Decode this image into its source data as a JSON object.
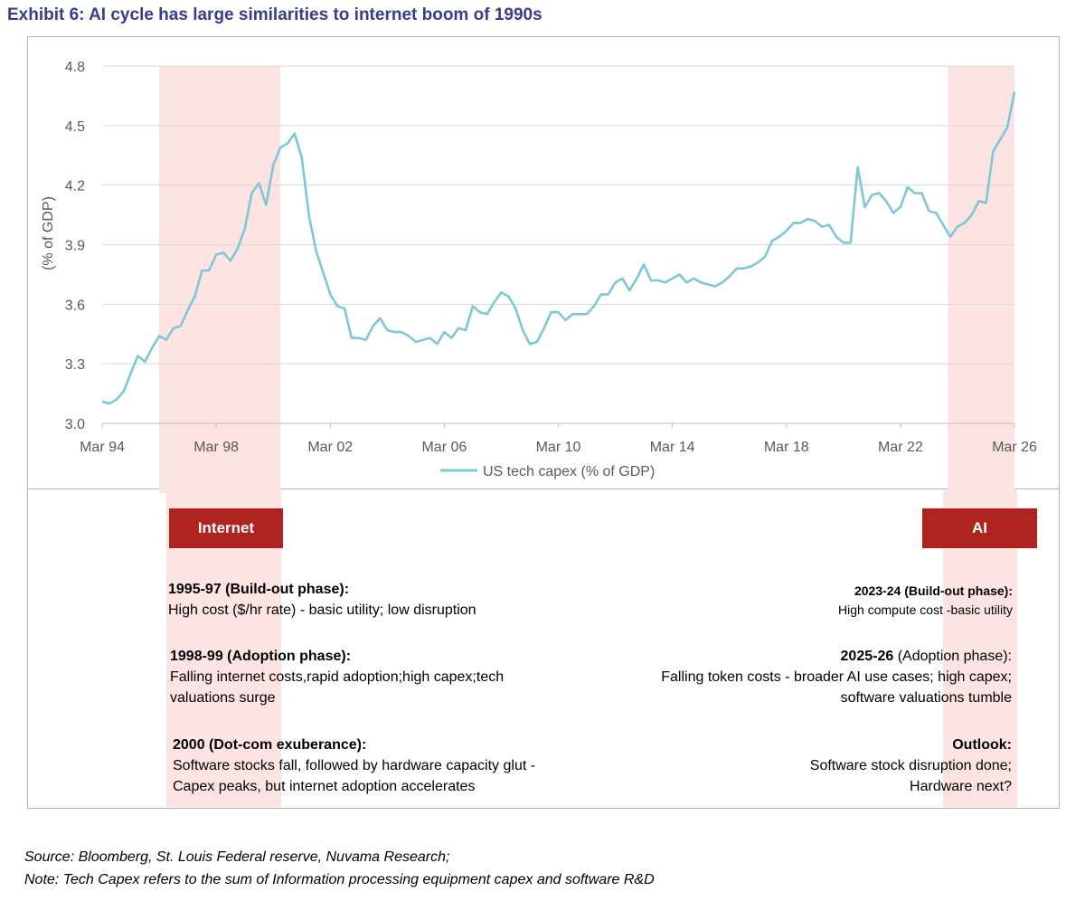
{
  "title": "Exhibit 6: AI cycle has large similarities to internet boom of 1990s",
  "chart_data": {
    "type": "line",
    "ylabel": "(% of GDP)",
    "ylim": [
      3.0,
      4.8
    ],
    "yticks": [
      "3.0",
      "3.3",
      "3.6",
      "3.9",
      "4.2",
      "4.5",
      "4.8"
    ],
    "xticks": [
      "Mar 94",
      "Mar 98",
      "Mar 02",
      "Mar 06",
      "Mar 10",
      "Mar 14",
      "Mar 18",
      "Mar 22",
      "Mar 26"
    ],
    "grid": "horizontal",
    "legend_position": "bottom",
    "shaded_periods": [
      {
        "start": "1996-03",
        "end": "2000-06"
      },
      {
        "start": "2023-11",
        "end": "2026-03"
      }
    ],
    "series": [
      {
        "name": "US tech capex (% of GDP)",
        "color": "#7ec8d6",
        "points": [
          [
            "1994-03",
            3.11
          ],
          [
            "1994-06",
            3.1
          ],
          [
            "1994-09",
            3.12
          ],
          [
            "1994-12",
            3.16
          ],
          [
            "1995-03",
            3.25
          ],
          [
            "1995-06",
            3.34
          ],
          [
            "1995-09",
            3.31
          ],
          [
            "1995-12",
            3.38
          ],
          [
            "1996-03",
            3.44
          ],
          [
            "1996-06",
            3.42
          ],
          [
            "1996-09",
            3.48
          ],
          [
            "1996-12",
            3.49
          ],
          [
            "1997-03",
            3.57
          ],
          [
            "1997-06",
            3.64
          ],
          [
            "1997-09",
            3.77
          ],
          [
            "1997-12",
            3.77
          ],
          [
            "1998-03",
            3.85
          ],
          [
            "1998-06",
            3.86
          ],
          [
            "1998-09",
            3.82
          ],
          [
            "1998-12",
            3.88
          ],
          [
            "1999-03",
            3.98
          ],
          [
            "1999-06",
            4.16
          ],
          [
            "1999-09",
            4.21
          ],
          [
            "1999-12",
            4.1
          ],
          [
            "2000-03",
            4.3
          ],
          [
            "2000-06",
            4.39
          ],
          [
            "2000-09",
            4.41
          ],
          [
            "2000-12",
            4.46
          ],
          [
            "2001-03",
            4.34
          ],
          [
            "2001-06",
            4.05
          ],
          [
            "2001-09",
            3.87
          ],
          [
            "2001-12",
            3.76
          ],
          [
            "2002-03",
            3.65
          ],
          [
            "2002-06",
            3.59
          ],
          [
            "2002-09",
            3.58
          ],
          [
            "2002-12",
            3.43
          ],
          [
            "2003-03",
            3.43
          ],
          [
            "2003-06",
            3.42
          ],
          [
            "2003-09",
            3.49
          ],
          [
            "2003-12",
            3.53
          ],
          [
            "2004-03",
            3.47
          ],
          [
            "2004-06",
            3.46
          ],
          [
            "2004-09",
            3.46
          ],
          [
            "2004-12",
            3.44
          ],
          [
            "2005-03",
            3.41
          ],
          [
            "2005-06",
            3.42
          ],
          [
            "2005-09",
            3.43
          ],
          [
            "2005-12",
            3.4
          ],
          [
            "2006-03",
            3.46
          ],
          [
            "2006-06",
            3.43
          ],
          [
            "2006-09",
            3.48
          ],
          [
            "2006-12",
            3.47
          ],
          [
            "2007-03",
            3.59
          ],
          [
            "2007-06",
            3.56
          ],
          [
            "2007-09",
            3.55
          ],
          [
            "2007-12",
            3.61
          ],
          [
            "2008-03",
            3.66
          ],
          [
            "2008-06",
            3.64
          ],
          [
            "2008-09",
            3.58
          ],
          [
            "2008-12",
            3.47
          ],
          [
            "2009-03",
            3.4
          ],
          [
            "2009-06",
            3.41
          ],
          [
            "2009-09",
            3.48
          ],
          [
            "2009-12",
            3.56
          ],
          [
            "2010-03",
            3.56
          ],
          [
            "2010-06",
            3.52
          ],
          [
            "2010-09",
            3.55
          ],
          [
            "2010-12",
            3.55
          ],
          [
            "2011-03",
            3.55
          ],
          [
            "2011-06",
            3.59
          ],
          [
            "2011-09",
            3.65
          ],
          [
            "2011-12",
            3.65
          ],
          [
            "2012-03",
            3.71
          ],
          [
            "2012-06",
            3.73
          ],
          [
            "2012-09",
            3.67
          ],
          [
            "2012-12",
            3.73
          ],
          [
            "2013-03",
            3.8
          ],
          [
            "2013-06",
            3.72
          ],
          [
            "2013-09",
            3.72
          ],
          [
            "2013-12",
            3.71
          ],
          [
            "2014-03",
            3.73
          ],
          [
            "2014-06",
            3.75
          ],
          [
            "2014-09",
            3.71
          ],
          [
            "2014-12",
            3.73
          ],
          [
            "2015-03",
            3.71
          ],
          [
            "2015-06",
            3.7
          ],
          [
            "2015-09",
            3.69
          ],
          [
            "2015-12",
            3.71
          ],
          [
            "2016-03",
            3.74
          ],
          [
            "2016-06",
            3.78
          ],
          [
            "2016-09",
            3.78
          ],
          [
            "2016-12",
            3.79
          ],
          [
            "2017-03",
            3.81
          ],
          [
            "2017-06",
            3.84
          ],
          [
            "2017-09",
            3.92
          ],
          [
            "2017-12",
            3.94
          ],
          [
            "2018-03",
            3.97
          ],
          [
            "2018-06",
            4.01
          ],
          [
            "2018-09",
            4.01
          ],
          [
            "2018-12",
            4.03
          ],
          [
            "2019-03",
            4.02
          ],
          [
            "2019-06",
            3.99
          ],
          [
            "2019-09",
            4.0
          ],
          [
            "2019-12",
            3.94
          ],
          [
            "2020-03",
            3.91
          ],
          [
            "2020-06",
            3.91
          ],
          [
            "2020-09",
            4.29
          ],
          [
            "2020-12",
            4.09
          ],
          [
            "2021-03",
            4.15
          ],
          [
            "2021-06",
            4.16
          ],
          [
            "2021-09",
            4.12
          ],
          [
            "2021-12",
            4.06
          ],
          [
            "2022-03",
            4.09
          ],
          [
            "2022-06",
            4.19
          ],
          [
            "2022-09",
            4.16
          ],
          [
            "2022-12",
            4.16
          ],
          [
            "2023-03",
            4.07
          ],
          [
            "2023-06",
            4.06
          ],
          [
            "2023-09",
            4.0
          ],
          [
            "2023-12",
            3.94
          ],
          [
            "2024-03",
            3.99
          ],
          [
            "2024-06",
            4.01
          ],
          [
            "2024-09",
            4.05
          ],
          [
            "2024-12",
            4.12
          ],
          [
            "2025-03",
            4.11
          ],
          [
            "2025-06",
            4.37
          ],
          [
            "2025-09",
            4.43
          ],
          [
            "2025-12",
            4.49
          ],
          [
            "2026-03",
            4.67
          ]
        ]
      }
    ]
  },
  "eras": {
    "internet": "Internet",
    "ai": "AI"
  },
  "notes": {
    "n1_head": "1995-97 (Build-out phase):",
    "n1_body": "High cost ($/hr rate) - basic utility;  low disruption",
    "n2_head": "1998-99 (Adoption phase):",
    "n2_body": "Falling internet costs,rapid adoption;high  capex;tech valuations surge",
    "n3_head": "2000 (Dot-com exuberance):",
    "n3_body": "Software stocks fall, followed by hardware capacity glut - Capex peaks, but internet adoption accelerates",
    "n4_head": "2023-24 (Build-out phase):",
    "n4_body": "High compute  cost -basic utility",
    "n5_head": "2025-26",
    "n5_head_rest": " (Adoption phase):",
    "n5_body1": "Falling token costs - broader AI use cases; high capex;",
    "n5_body2": "software valuations  tumble",
    "n6_head": "Outlook:",
    "n6_body1": "Software stock  disruption done;",
    "n6_body2": "Hardware next?"
  },
  "source": {
    "line1": "Source: Bloomberg, St. Louis Federal reserve, Nuvama Research;",
    "line2": "Note: Tech Capex refers to the sum of Information processing equipment capex and software R&D"
  }
}
